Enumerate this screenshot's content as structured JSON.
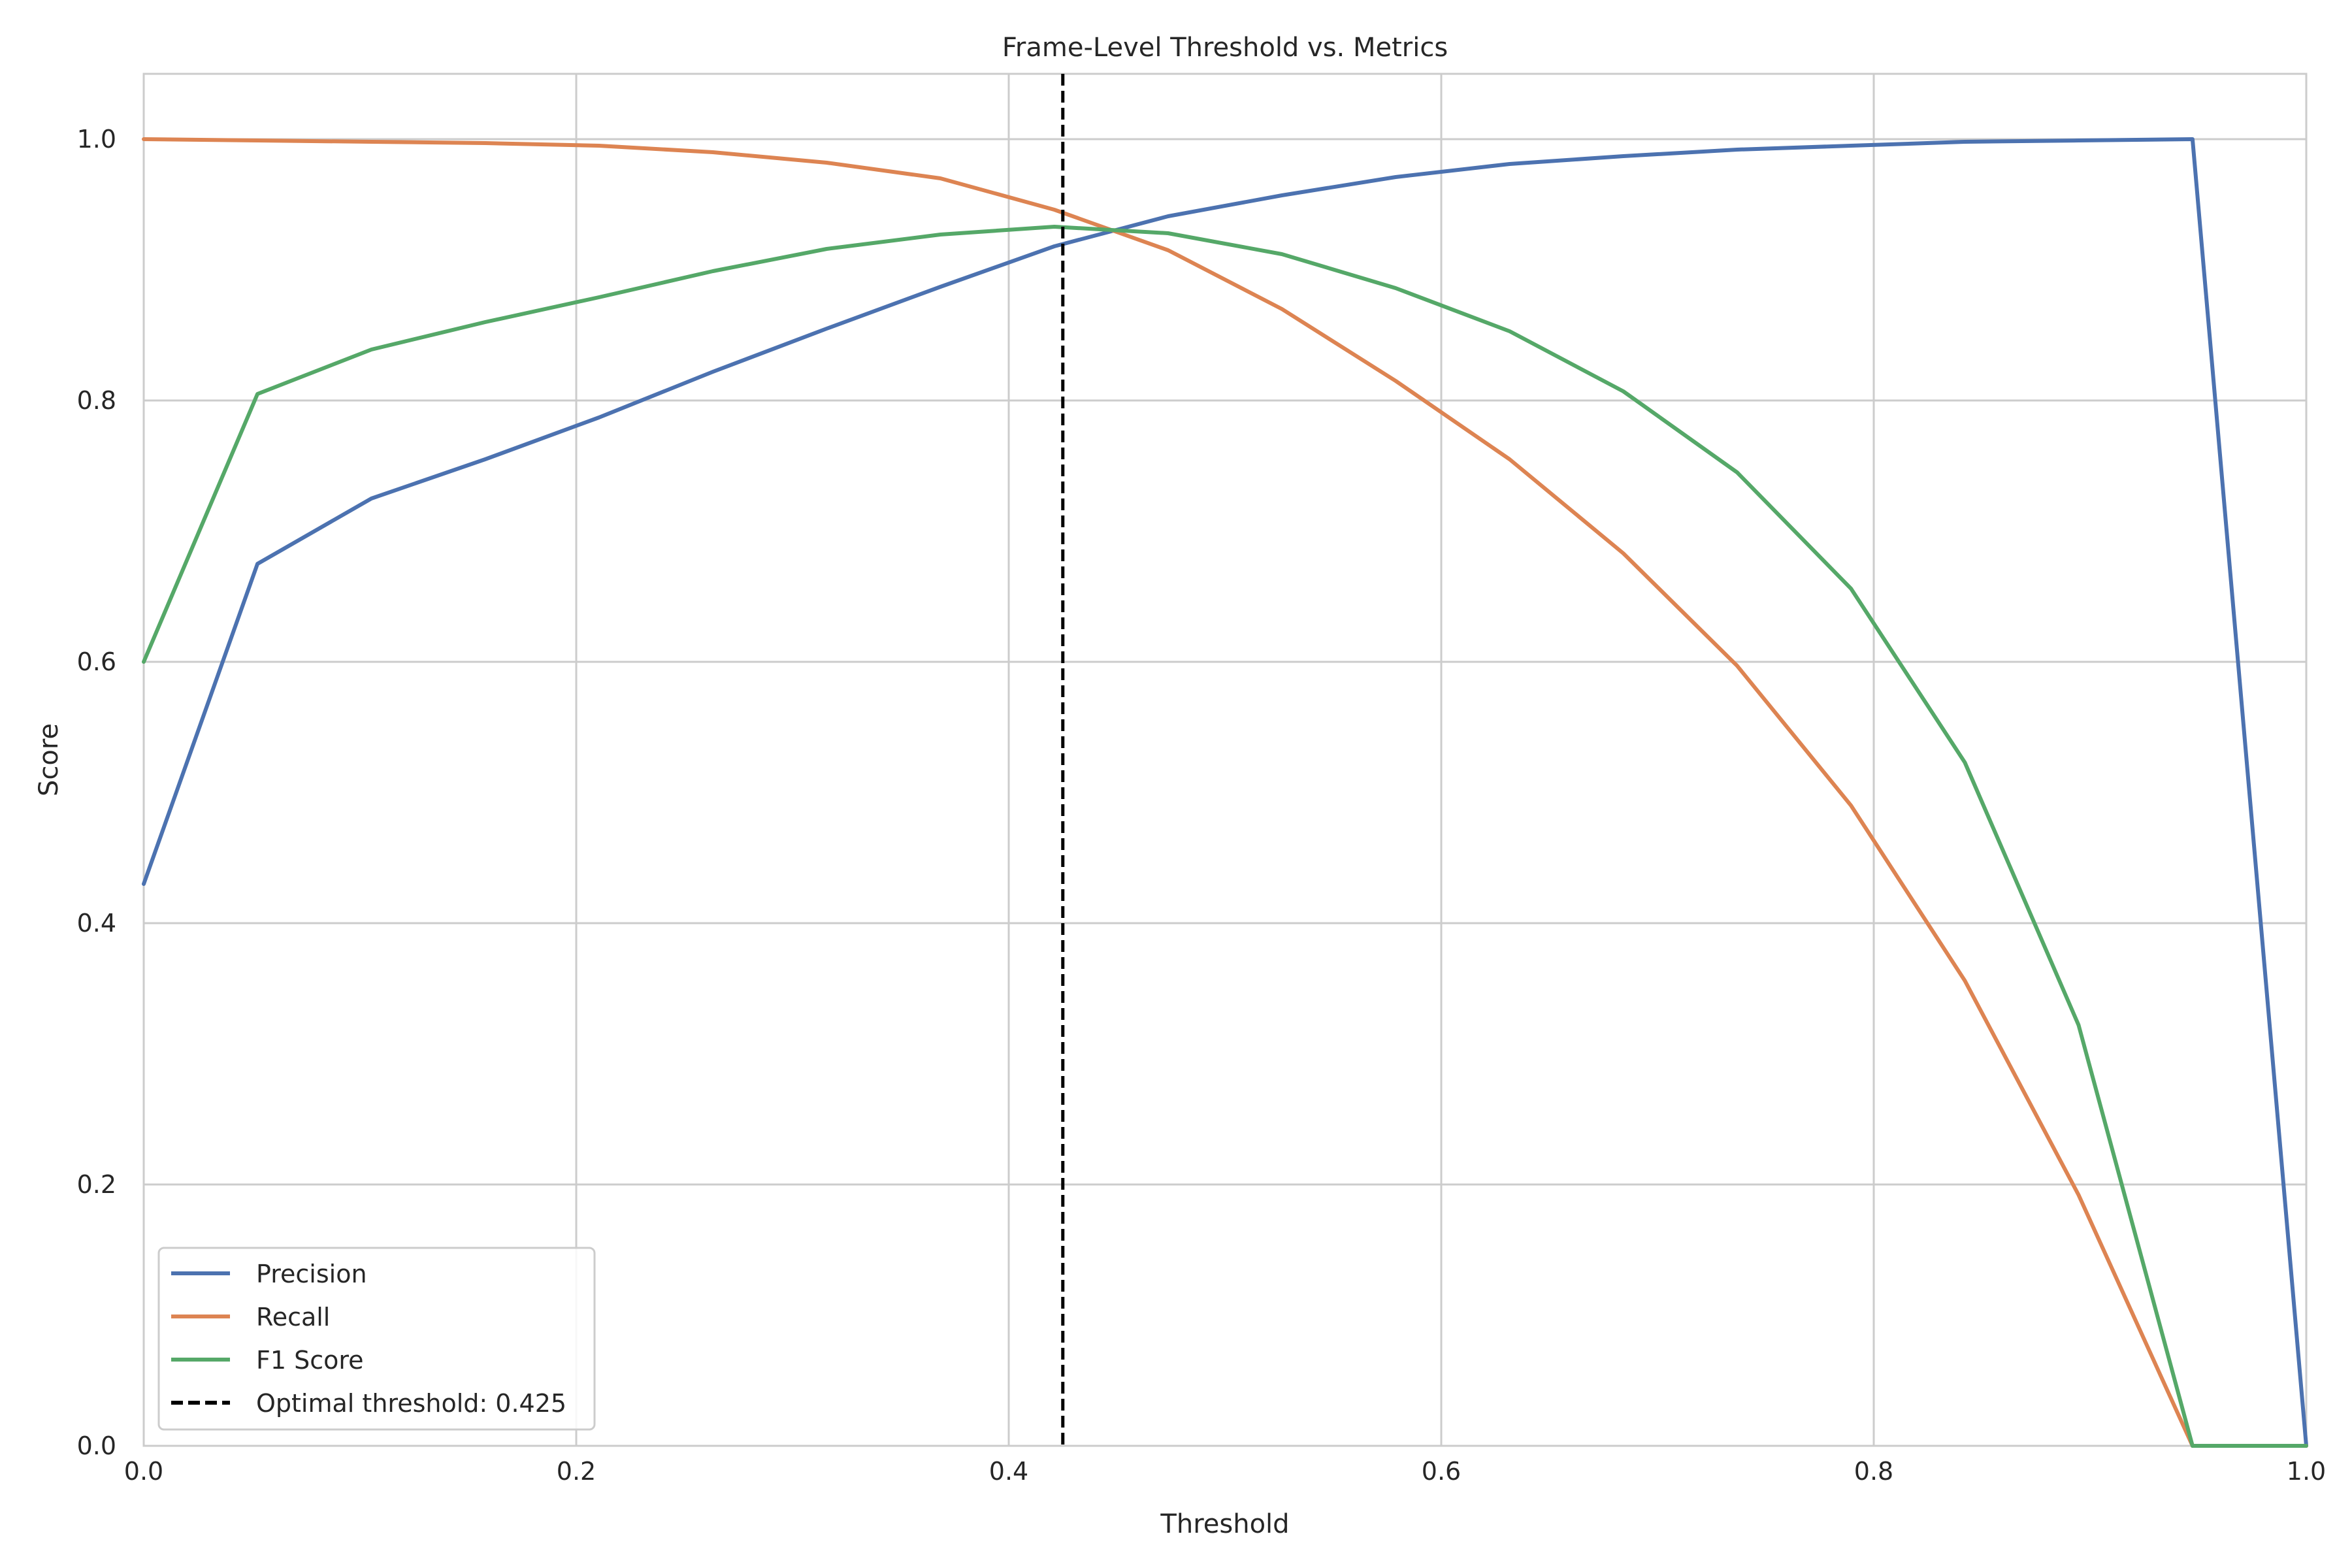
{
  "chart_data": {
    "type": "line",
    "title": "Frame-Level Threshold vs. Metrics",
    "xlabel": "Threshold",
    "ylabel": "Score",
    "xlim": [
      0.0,
      1.0
    ],
    "ylim": [
      0.0,
      1.05
    ],
    "xticks": [
      "0.0",
      "0.2",
      "0.4",
      "0.6",
      "0.8",
      "1.0"
    ],
    "yticks": [
      "0.0",
      "0.2",
      "0.4",
      "0.6",
      "0.8",
      "1.0"
    ],
    "grid": true,
    "legend_position": "lower-left",
    "x": [
      0.0,
      0.0526,
      0.1053,
      0.1579,
      0.2105,
      0.2632,
      0.3158,
      0.3684,
      0.4211,
      0.4737,
      0.5263,
      0.5789,
      0.6316,
      0.6842,
      0.7368,
      0.7895,
      0.8421,
      0.8947,
      0.9474,
      1.0
    ],
    "series": [
      {
        "name": "Precision",
        "color": "#4c72b0",
        "values": [
          0.43,
          0.675,
          0.725,
          0.755,
          0.787,
          0.822,
          0.855,
          0.887,
          0.918,
          0.941,
          0.957,
          0.971,
          0.981,
          0.987,
          0.992,
          0.995,
          0.998,
          0.999,
          1.0,
          0.0
        ]
      },
      {
        "name": "Recall",
        "color": "#dd8452",
        "values": [
          1.0,
          0.999,
          0.998,
          0.997,
          0.995,
          0.99,
          0.982,
          0.97,
          0.946,
          0.915,
          0.87,
          0.815,
          0.755,
          0.683,
          0.597,
          0.49,
          0.356,
          0.192,
          0.0,
          0.0
        ]
      },
      {
        "name": "F1 Score",
        "color": "#55a868",
        "values": [
          0.6,
          0.805,
          0.839,
          0.86,
          0.879,
          0.899,
          0.916,
          0.927,
          0.933,
          0.928,
          0.912,
          0.886,
          0.853,
          0.807,
          0.745,
          0.656,
          0.523,
          0.322,
          0.0,
          0.0
        ]
      }
    ],
    "vline": {
      "x": 0.425,
      "label": "Optimal threshold: 0.425",
      "color": "#000000",
      "style": "dashed"
    }
  }
}
